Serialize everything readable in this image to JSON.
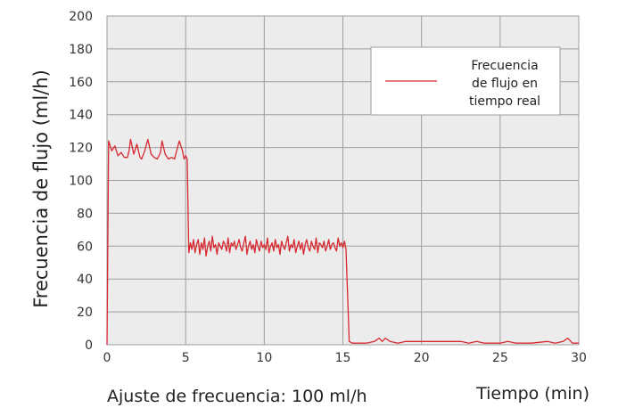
{
  "chart_data": {
    "type": "line",
    "xlabel": "Tiempo (min)",
    "ylabel": "Frecuencia de flujo (ml/h)",
    "note": "Ajuste de frecuencia: 100 ml/h",
    "xlim": [
      0,
      30
    ],
    "ylim": [
      0,
      200
    ],
    "xticks": [
      0,
      5,
      10,
      15,
      20,
      25,
      30
    ],
    "yticks": [
      0,
      20,
      40,
      60,
      80,
      100,
      120,
      140,
      160,
      180,
      200
    ],
    "grid": true,
    "legend": {
      "position": "top-right",
      "lines": [
        "Frecuencia",
        "de flujo en",
        "tiempo real"
      ]
    },
    "colors": {
      "series": "#d7282f",
      "plot_bg": "#ececec",
      "grid": "#9e9e9e"
    },
    "series": [
      {
        "name": "Frecuencia de flujo en tiempo real",
        "x": [
          0,
          0.1,
          0.3,
          0.5,
          0.7,
          0.9,
          1.1,
          1.3,
          1.4,
          1.5,
          1.7,
          1.9,
          2.1,
          2.2,
          2.4,
          2.6,
          2.8,
          3.0,
          3.2,
          3.4,
          3.5,
          3.7,
          3.9,
          4.1,
          4.3,
          4.4,
          4.6,
          4.8,
          4.9,
          5.0,
          5.1,
          5.2,
          5.3,
          5.4,
          5.5,
          5.6,
          5.7,
          5.8,
          5.9,
          6.0,
          6.1,
          6.2,
          6.3,
          6.4,
          6.5,
          6.6,
          6.7,
          6.8,
          6.9,
          7.0,
          7.1,
          7.2,
          7.3,
          7.4,
          7.5,
          7.6,
          7.7,
          7.8,
          7.9,
          8.0,
          8.1,
          8.2,
          8.3,
          8.4,
          8.5,
          8.6,
          8.7,
          8.8,
          8.9,
          9.0,
          9.1,
          9.2,
          9.3,
          9.4,
          9.5,
          9.6,
          9.7,
          9.8,
          9.9,
          10.0,
          10.1,
          10.2,
          10.3,
          10.4,
          10.5,
          10.6,
          10.7,
          10.8,
          10.9,
          11.0,
          11.1,
          11.2,
          11.3,
          11.4,
          11.5,
          11.6,
          11.7,
          11.8,
          11.9,
          12.0,
          12.1,
          12.2,
          12.3,
          12.4,
          12.5,
          12.6,
          12.7,
          12.8,
          12.9,
          13.0,
          13.1,
          13.2,
          13.3,
          13.4,
          13.5,
          13.6,
          13.7,
          13.8,
          13.9,
          14.0,
          14.1,
          14.2,
          14.3,
          14.4,
          14.5,
          14.6,
          14.7,
          14.8,
          14.9,
          15.0,
          15.1,
          15.2,
          15.4,
          15.6,
          16.0,
          16.5,
          17.0,
          17.3,
          17.5,
          17.7,
          18.0,
          18.5,
          19.0,
          20.0,
          21.0,
          22.0,
          22.5,
          23.0,
          23.5,
          24.0,
          25.0,
          25.5,
          26.0,
          27.0,
          28.0,
          28.5,
          29.0,
          29.3,
          29.6,
          30.0
        ],
        "y": [
          0,
          124,
          118,
          121,
          115,
          117,
          114,
          114,
          118,
          125,
          116,
          122,
          114,
          113,
          118,
          125,
          116,
          114,
          113,
          117,
          124,
          116,
          113,
          114,
          113,
          117,
          124,
          118,
          113,
          115,
          113,
          56,
          62,
          58,
          64,
          56,
          61,
          64,
          55,
          62,
          58,
          65,
          54,
          60,
          63,
          57,
          66,
          59,
          61,
          55,
          62,
          60,
          58,
          63,
          61,
          57,
          65,
          56,
          62,
          60,
          63,
          58,
          61,
          64,
          59,
          57,
          62,
          66,
          55,
          60,
          63,
          58,
          61,
          56,
          64,
          60,
          57,
          63,
          59,
          61,
          58,
          65,
          56,
          60,
          62,
          57,
          64,
          59,
          61,
          55,
          63,
          60,
          58,
          62,
          66,
          57,
          61,
          59,
          64,
          56,
          60,
          63,
          58,
          62,
          55,
          61,
          64,
          59,
          57,
          63,
          60,
          58,
          65,
          56,
          62,
          61,
          59,
          63,
          57,
          60,
          64,
          58,
          61,
          62,
          59,
          57,
          65,
          60,
          62,
          59,
          63,
          58,
          2,
          1,
          1,
          1,
          2,
          4,
          2,
          4,
          2,
          1,
          2,
          2,
          2,
          2,
          2,
          1,
          2,
          1,
          1,
          2,
          1,
          1,
          2,
          1,
          2,
          4,
          1,
          1
        ]
      }
    ]
  }
}
